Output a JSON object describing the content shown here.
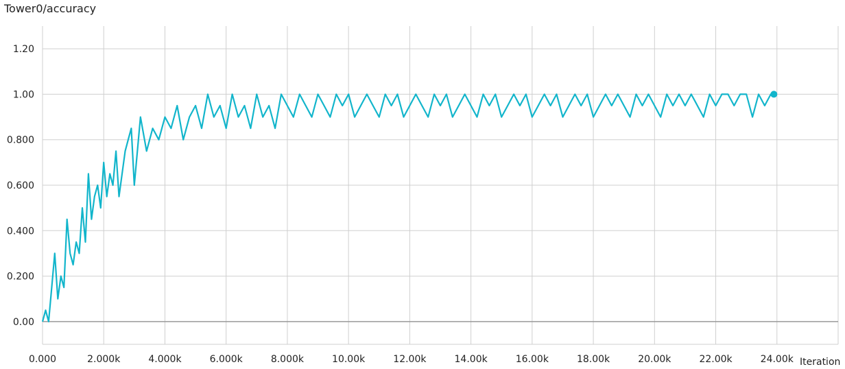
{
  "chart_data": {
    "type": "line",
    "title": "Tower0/accuracy",
    "xlabel": "Iteration",
    "ylabel": "",
    "xlim": [
      0,
      26000
    ],
    "ylim": [
      -0.1,
      1.3
    ],
    "x_ticks": [
      0,
      2000,
      4000,
      6000,
      8000,
      10000,
      12000,
      14000,
      16000,
      18000,
      20000,
      22000,
      24000
    ],
    "x_tick_labels": [
      "0.000",
      "2.000k",
      "4.000k",
      "6.000k",
      "8.000k",
      "10.00k",
      "12.00k",
      "14.00k",
      "16.00k",
      "18.00k",
      "20.00k",
      "22.00k",
      "24.00k"
    ],
    "y_ticks": [
      0,
      0.2,
      0.4,
      0.6,
      0.8,
      1.0,
      1.2
    ],
    "y_tick_labels": [
      "0.00",
      "0.200",
      "0.400",
      "0.600",
      "0.800",
      "1.00",
      "1.20"
    ],
    "grid": true,
    "colors": {
      "series": "#12b5cb",
      "grid": "#cfcfcf",
      "zero_line": "#999999"
    },
    "series": [
      {
        "x": [
          0,
          100,
          200,
          300,
          400,
          500,
          600,
          700,
          800,
          900,
          1000,
          1100,
          1200,
          1300,
          1400,
          1500,
          1600,
          1700,
          1800,
          1900,
          2000,
          2100,
          2200,
          2300,
          2400,
          2500,
          2600,
          2700,
          2800,
          2900,
          3000,
          3200,
          3400,
          3600,
          3800,
          4000,
          4200,
          4400,
          4600,
          4800,
          5000,
          5200,
          5400,
          5600,
          5800,
          6000,
          6200,
          6400,
          6600,
          6800,
          7000,
          7200,
          7400,
          7600,
          7800,
          8000,
          8200,
          8400,
          8600,
          8800,
          9000,
          9200,
          9400,
          9600,
          9800,
          10000,
          10200,
          10400,
          10600,
          10800,
          11000,
          11200,
          11400,
          11600,
          11800,
          12000,
          12200,
          12400,
          12600,
          12800,
          13000,
          13200,
          13400,
          13600,
          13800,
          14000,
          14200,
          14400,
          14600,
          14800,
          15000,
          15200,
          15400,
          15600,
          15800,
          16000,
          16200,
          16400,
          16600,
          16800,
          17000,
          17200,
          17400,
          17600,
          17800,
          18000,
          18200,
          18400,
          18600,
          18800,
          19000,
          19200,
          19400,
          19600,
          19800,
          20000,
          20200,
          20400,
          20600,
          20800,
          21000,
          21200,
          21400,
          21600,
          21800,
          22000,
          22200,
          22400,
          22600,
          22800,
          23000,
          23200,
          23400,
          23600,
          23800,
          23900
        ],
        "y": [
          0.0,
          0.05,
          0.0,
          0.15,
          0.3,
          0.1,
          0.2,
          0.15,
          0.45,
          0.3,
          0.25,
          0.35,
          0.3,
          0.5,
          0.35,
          0.65,
          0.45,
          0.55,
          0.6,
          0.5,
          0.7,
          0.55,
          0.65,
          0.6,
          0.75,
          0.55,
          0.65,
          0.75,
          0.8,
          0.85,
          0.6,
          0.9,
          0.75,
          0.85,
          0.8,
          0.9,
          0.85,
          0.95,
          0.8,
          0.9,
          0.95,
          0.85,
          1.0,
          0.9,
          0.95,
          0.85,
          1.0,
          0.9,
          0.95,
          0.85,
          1.0,
          0.9,
          0.95,
          0.85,
          1.0,
          0.95,
          0.9,
          1.0,
          0.95,
          0.9,
          1.0,
          0.95,
          0.9,
          1.0,
          0.95,
          1.0,
          0.9,
          0.95,
          1.0,
          0.95,
          0.9,
          1.0,
          0.95,
          1.0,
          0.9,
          0.95,
          1.0,
          0.95,
          0.9,
          1.0,
          0.95,
          1.0,
          0.9,
          0.95,
          1.0,
          0.95,
          0.9,
          1.0,
          0.95,
          1.0,
          0.9,
          0.95,
          1.0,
          0.95,
          1.0,
          0.9,
          0.95,
          1.0,
          0.95,
          1.0,
          0.9,
          0.95,
          1.0,
          0.95,
          1.0,
          0.9,
          0.95,
          1.0,
          0.95,
          1.0,
          0.95,
          0.9,
          1.0,
          0.95,
          1.0,
          0.95,
          0.9,
          1.0,
          0.95,
          1.0,
          0.95,
          1.0,
          0.95,
          0.9,
          1.0,
          0.95,
          1.0,
          1.0,
          0.95,
          1.0,
          1.0,
          0.9,
          1.0,
          0.95,
          1.0,
          1.0
        ]
      }
    ]
  }
}
